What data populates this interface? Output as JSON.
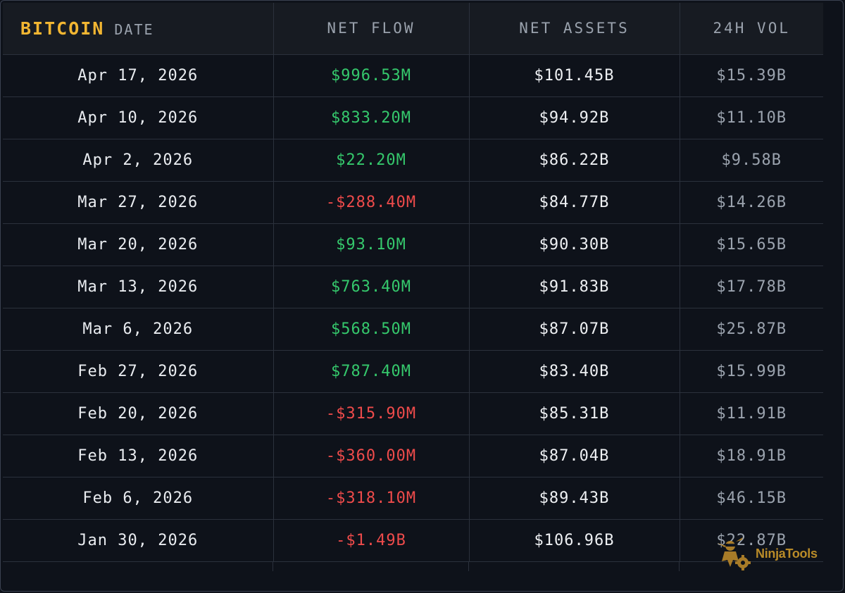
{
  "header": {
    "brand": "BITCOIN",
    "date_label": "DATE",
    "net_flow_label": "NET FLOW",
    "net_assets_label": "NET ASSETS",
    "vol_label": "24H VOL"
  },
  "rows": [
    {
      "date": "Apr 17, 2026",
      "net_flow": "$996.53M",
      "flow_sign": "pos",
      "net_assets": "$101.45B",
      "vol": "$15.39B"
    },
    {
      "date": "Apr 10, 2026",
      "net_flow": "$833.20M",
      "flow_sign": "pos",
      "net_assets": "$94.92B",
      "vol": "$11.10B"
    },
    {
      "date": "Apr 2, 2026",
      "net_flow": "$22.20M",
      "flow_sign": "pos",
      "net_assets": "$86.22B",
      "vol": "$9.58B"
    },
    {
      "date": "Mar 27, 2026",
      "net_flow": "-$288.40M",
      "flow_sign": "neg",
      "net_assets": "$84.77B",
      "vol": "$14.26B"
    },
    {
      "date": "Mar 20, 2026",
      "net_flow": "$93.10M",
      "flow_sign": "pos",
      "net_assets": "$90.30B",
      "vol": "$15.65B"
    },
    {
      "date": "Mar 13, 2026",
      "net_flow": "$763.40M",
      "flow_sign": "pos",
      "net_assets": "$91.83B",
      "vol": "$17.78B"
    },
    {
      "date": "Mar 6, 2026",
      "net_flow": "$568.50M",
      "flow_sign": "pos",
      "net_assets": "$87.07B",
      "vol": "$25.87B"
    },
    {
      "date": "Feb 27, 2026",
      "net_flow": "$787.40M",
      "flow_sign": "pos",
      "net_assets": "$83.40B",
      "vol": "$15.99B"
    },
    {
      "date": "Feb 20, 2026",
      "net_flow": "-$315.90M",
      "flow_sign": "neg",
      "net_assets": "$85.31B",
      "vol": "$11.91B"
    },
    {
      "date": "Feb 13, 2026",
      "net_flow": "-$360.00M",
      "flow_sign": "neg",
      "net_assets": "$87.04B",
      "vol": "$18.91B"
    },
    {
      "date": "Feb 6, 2026",
      "net_flow": "-$318.10M",
      "flow_sign": "neg",
      "net_assets": "$89.43B",
      "vol": "$46.15B"
    },
    {
      "date": "Jan 30, 2026",
      "net_flow": "-$1.49B",
      "flow_sign": "neg",
      "net_assets": "$106.96B",
      "vol": "$22.87B"
    }
  ],
  "watermark": {
    "text": "NinjaTools",
    "icon": "ninja-icon"
  },
  "colors": {
    "brand": "#f2b632",
    "positive": "#35c86c",
    "negative": "#ee4b4b",
    "background": "#0e121a",
    "header_bg": "#171b22"
  }
}
